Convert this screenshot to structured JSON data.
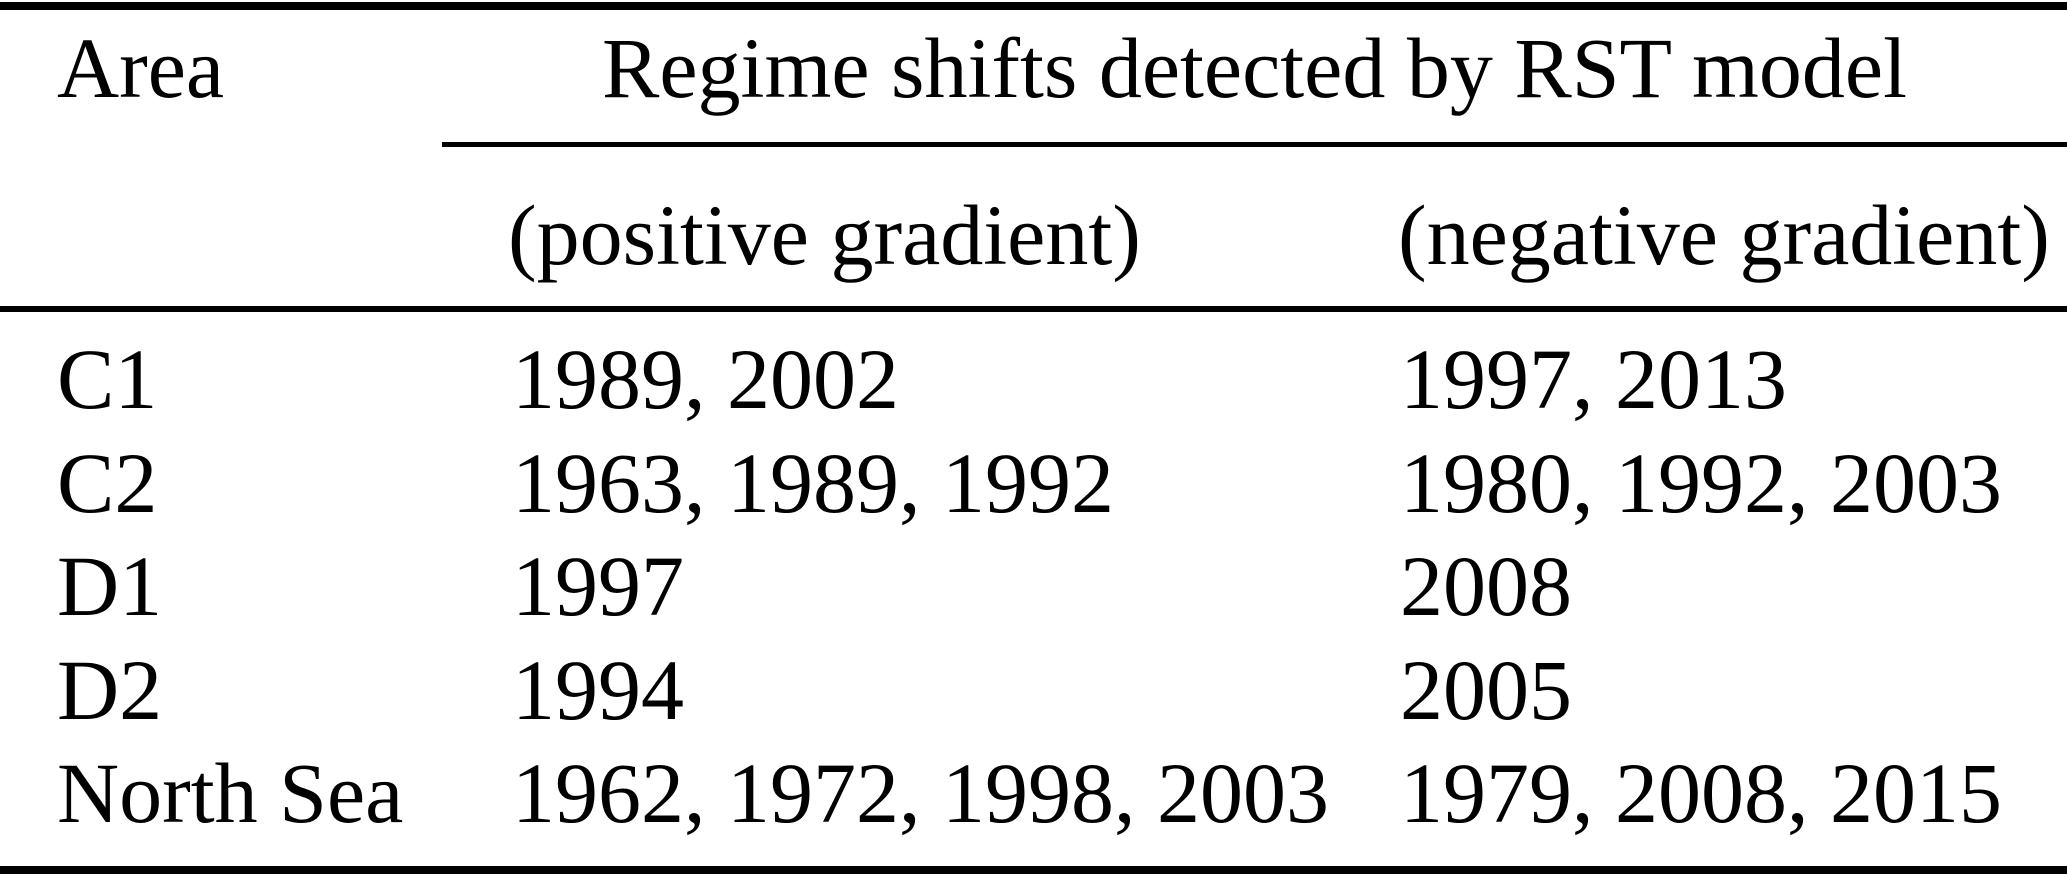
{
  "table": {
    "headers": {
      "area": "Area",
      "span": "Regime shifts detected by RST model",
      "positive": "(positive gradient)",
      "negative": "(negative gradient)"
    },
    "rows": [
      {
        "area": "C1",
        "positive": "1989, 2002",
        "negative": "1997, 2013"
      },
      {
        "area": "C2",
        "positive": "1963, 1989, 1992",
        "negative": "1980, 1992, 2003"
      },
      {
        "area": "D1",
        "positive": "1997",
        "negative": "2008"
      },
      {
        "area": "D2",
        "positive": "1994",
        "negative": "2005"
      },
      {
        "area": "North Sea",
        "positive": "1962, 1972, 1998, 2003",
        "negative": "1979, 2008, 2015"
      }
    ],
    "colors": {
      "text": "#000000",
      "background": "#ffffff",
      "rule": "#000000"
    }
  },
  "chart_data": {
    "type": "table",
    "title": "Regime shifts detected by RST model",
    "columns": [
      "Area",
      "(positive gradient)",
      "(negative gradient)"
    ],
    "rows": [
      [
        "C1",
        "1989, 2002",
        "1997, 2013"
      ],
      [
        "C2",
        "1963, 1989, 1992",
        "1980, 1992, 2003"
      ],
      [
        "D1",
        "1997",
        "2008"
      ],
      [
        "D2",
        "1994",
        "2005"
      ],
      [
        "North Sea",
        "1962, 1972, 1998, 2003",
        "1979, 2008, 2015"
      ]
    ]
  }
}
